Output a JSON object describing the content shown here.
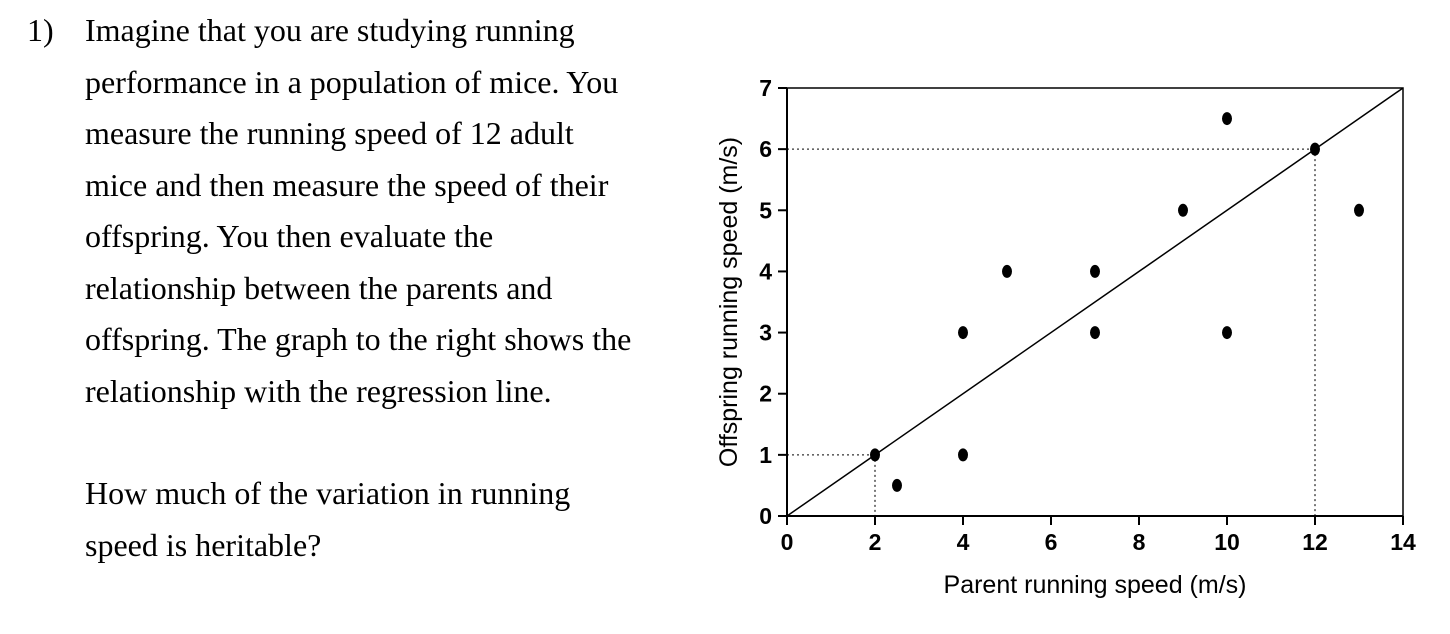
{
  "question": {
    "number_label": "1)",
    "para1_lines": [
      "Imagine that you are studying running",
      "performance in a population of mice. You",
      "measure the running speed of 12 adult",
      "mice and then measure the speed of their",
      "offspring. You then evaluate the",
      "relationship between the parents and",
      "offspring. The graph to the right shows the",
      "relationship with the regression line."
    ],
    "para2_lines": [
      "How much of the variation in running",
      "speed is heritable?"
    ]
  },
  "chart_data": {
    "type": "scatter",
    "title": "",
    "xlabel": "Parent running speed (m/s)",
    "ylabel": "Offspring running speed (m/s)",
    "xlim": [
      0,
      14
    ],
    "ylim": [
      0,
      7
    ],
    "x_ticks": [
      0,
      2,
      4,
      6,
      8,
      10,
      12,
      14
    ],
    "y_ticks": [
      0,
      1,
      2,
      3,
      4,
      5,
      6,
      7
    ],
    "grid": false,
    "frame": "full-box",
    "legend": "none",
    "points": [
      {
        "x": 2,
        "y": 1
      },
      {
        "x": 2.5,
        "y": 0.5
      },
      {
        "x": 4,
        "y": 1
      },
      {
        "x": 4,
        "y": 3
      },
      {
        "x": 5,
        "y": 4
      },
      {
        "x": 7,
        "y": 3
      },
      {
        "x": 7,
        "y": 4
      },
      {
        "x": 9,
        "y": 5
      },
      {
        "x": 10,
        "y": 3
      },
      {
        "x": 10,
        "y": 6.5
      },
      {
        "x": 12,
        "y": 6
      },
      {
        "x": 13,
        "y": 5
      }
    ],
    "regression_line": {
      "x1": 0,
      "y1": 0,
      "x2": 14,
      "y2": 7,
      "slope": 0.5,
      "intercept": 0
    },
    "guide_points": [
      {
        "x": 2,
        "y": 1
      },
      {
        "x": 12,
        "y": 6
      }
    ],
    "colors": {
      "points": "#000000",
      "regression_line": "#000000",
      "guides": "#333333",
      "text": "#000000",
      "background": "#ffffff"
    }
  }
}
